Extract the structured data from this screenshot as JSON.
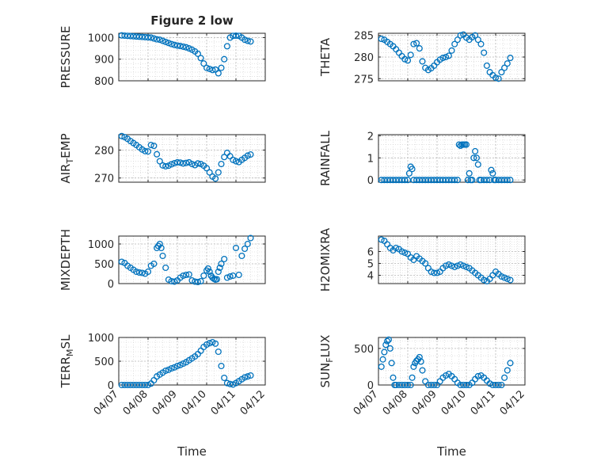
{
  "figure": {
    "title": "Figure 2 low",
    "marker_color": "#0072BD",
    "grid": "on (major and minor, dotted)"
  },
  "chart_data": [
    {
      "id": "pressure",
      "type": "scatter",
      "title": "Figure 2 low",
      "ylabel": "PRESSURE",
      "ylabel_parts": {
        "main": "PRESSURE"
      },
      "xlim": [
        "04/07",
        "04/12"
      ],
      "ylim": [
        800,
        1020
      ],
      "yticks": [
        800,
        900,
        1000
      ],
      "ytick_labels": [
        "800",
        "900",
        "1000"
      ],
      "xtick_labels_shown": false,
      "x_days": [
        0.1,
        0.2,
        0.3,
        0.4,
        0.5,
        0.6,
        0.7,
        0.8,
        0.9,
        1.0,
        1.1,
        1.2,
        1.3,
        1.4,
        1.5,
        1.6,
        1.7,
        1.8,
        1.9,
        2.0,
        2.1,
        2.2,
        2.3,
        2.4,
        2.5,
        2.6,
        2.7,
        2.8,
        2.9,
        3.0,
        3.1,
        3.2,
        3.3,
        3.4,
        3.5,
        3.6,
        3.7,
        3.8,
        3.9,
        4.0,
        4.1,
        4.2,
        4.3,
        4.4,
        4.5
      ],
      "values": [
        1010,
        1009,
        1008,
        1007,
        1006,
        1005,
        1004,
        1003,
        1002,
        1001,
        1000,
        996,
        992,
        990,
        985,
        980,
        975,
        970,
        966,
        963,
        961,
        958,
        955,
        950,
        944,
        936,
        925,
        905,
        880,
        860,
        855,
        850,
        852,
        835,
        860,
        900,
        960,
        1000,
        1008,
        1009,
        1008,
        1000,
        990,
        985,
        982
      ]
    },
    {
      "id": "theta",
      "type": "scatter",
      "ylabel": "THETA",
      "ylabel_parts": {
        "main": "THETA"
      },
      "xlim": [
        "04/07",
        "04/12"
      ],
      "ylim": [
        274.5,
        285.5
      ],
      "yticks": [
        275,
        280,
        285
      ],
      "ytick_labels": [
        "275",
        "280",
        "285"
      ],
      "xtick_labels_shown": false,
      "x_days": [
        0.1,
        0.2,
        0.3,
        0.4,
        0.5,
        0.6,
        0.7,
        0.8,
        0.9,
        1.0,
        1.1,
        1.2,
        1.3,
        1.4,
        1.5,
        1.6,
        1.7,
        1.8,
        1.9,
        2.0,
        2.1,
        2.2,
        2.3,
        2.4,
        2.5,
        2.6,
        2.7,
        2.8,
        2.9,
        3.0,
        3.1,
        3.2,
        3.3,
        3.4,
        3.5,
        3.6,
        3.7,
        3.8,
        3.9,
        4.0,
        4.1,
        4.2,
        4.3,
        4.4,
        4.5
      ],
      "values": [
        284.2,
        284,
        283.5,
        283,
        282.5,
        281.8,
        281,
        280.2,
        279.5,
        279.2,
        280.5,
        283,
        283.2,
        282,
        279,
        277.5,
        277,
        277.4,
        278,
        278.8,
        279.4,
        279.8,
        280,
        280.3,
        281.5,
        283,
        284,
        285,
        285.2,
        284.5,
        284,
        284.6,
        285,
        284,
        283,
        281,
        278,
        276.5,
        275.8,
        275.2,
        275,
        276.5,
        277.5,
        278.5,
        279.8
      ]
    },
    {
      "id": "air_temp",
      "type": "scatter",
      "ylabel": "AIR_TEMP",
      "ylabel_parts": {
        "main": "AIR",
        "sub": "T",
        "tail": "EMP"
      },
      "xlim": [
        "04/07",
        "04/12"
      ],
      "ylim": [
        268.5,
        285.5
      ],
      "yticks": [
        270,
        280
      ],
      "ytick_labels": [
        "270",
        "280"
      ],
      "xtick_labels_shown": false,
      "x_days": [
        0.1,
        0.2,
        0.3,
        0.4,
        0.5,
        0.6,
        0.7,
        0.8,
        0.9,
        1.0,
        1.1,
        1.2,
        1.3,
        1.4,
        1.5,
        1.6,
        1.7,
        1.8,
        1.9,
        2.0,
        2.1,
        2.2,
        2.3,
        2.4,
        2.5,
        2.6,
        2.7,
        2.8,
        2.9,
        3.0,
        3.1,
        3.2,
        3.3,
        3.4,
        3.5,
        3.6,
        3.7,
        3.8,
        3.9,
        4.0,
        4.1,
        4.2,
        4.3,
        4.4,
        4.5
      ],
      "values": [
        285,
        284.6,
        284,
        283.2,
        282.5,
        281.8,
        281,
        280.2,
        279.6,
        279.5,
        281.8,
        281.5,
        278.5,
        276,
        274.5,
        274.2,
        274.4,
        274.9,
        275.3,
        275.6,
        275.5,
        275.2,
        275.4,
        275.6,
        275,
        274.6,
        275.2,
        275,
        274.4,
        273.5,
        272,
        270.5,
        269.8,
        272,
        275,
        277.5,
        279,
        277.8,
        276.5,
        276,
        275.7,
        276.5,
        277.2,
        278,
        278.4
      ]
    },
    {
      "id": "rainfall",
      "type": "scatter",
      "ylabel": "RAINFALL",
      "ylabel_parts": {
        "main": "RAINFALL"
      },
      "xlim": [
        "04/07",
        "04/12"
      ],
      "ylim": [
        -0.1,
        2.05
      ],
      "yticks": [
        0,
        1,
        2
      ],
      "ytick_labels": [
        "0",
        "1",
        "2"
      ],
      "xtick_labels_shown": false,
      "x_days": [
        0.1,
        0.2,
        0.3,
        0.4,
        0.5,
        0.6,
        0.7,
        0.8,
        0.9,
        1.0,
        1.05,
        1.1,
        1.15,
        1.2,
        1.3,
        1.4,
        1.5,
        1.6,
        1.7,
        1.8,
        1.9,
        2.0,
        2.1,
        2.2,
        2.3,
        2.4,
        2.5,
        2.6,
        2.7,
        2.75,
        2.8,
        2.85,
        2.9,
        2.95,
        3.0,
        3.05,
        3.1,
        3.15,
        3.2,
        3.25,
        3.3,
        3.35,
        3.4,
        3.45,
        3.5,
        3.6,
        3.7,
        3.8,
        3.85,
        3.9,
        3.95,
        4.0,
        4.1,
        4.2,
        4.3,
        4.4,
        4.5
      ],
      "values": [
        0,
        0,
        0,
        0,
        0,
        0,
        0,
        0,
        0,
        0,
        0.3,
        0.6,
        0.5,
        0,
        0,
        0,
        0,
        0,
        0,
        0,
        0,
        0,
        0,
        0,
        0,
        0,
        0,
        0,
        0,
        1.6,
        1.55,
        1.6,
        1.6,
        1.6,
        1.6,
        0,
        0.3,
        0,
        0,
        1.0,
        1.3,
        1.0,
        0.7,
        0,
        0,
        0,
        0,
        0,
        0.45,
        0.3,
        0,
        0,
        0,
        0,
        0,
        0,
        0
      ]
    },
    {
      "id": "mixdepth",
      "type": "scatter",
      "ylabel": "MIXDEPTH",
      "ylabel_parts": {
        "main": "MIXDEPTH"
      },
      "xlim": [
        "04/07",
        "04/12"
      ],
      "ylim": [
        0,
        1200
      ],
      "yticks": [
        0,
        500,
        1000
      ],
      "ytick_labels": [
        "0",
        "500",
        "1000"
      ],
      "xtick_labels_shown": false,
      "x_days": [
        0.1,
        0.2,
        0.3,
        0.4,
        0.5,
        0.6,
        0.7,
        0.8,
        0.9,
        1.0,
        1.1,
        1.2,
        1.3,
        1.35,
        1.4,
        1.45,
        1.5,
        1.6,
        1.7,
        1.8,
        1.9,
        2.0,
        2.1,
        2.2,
        2.3,
        2.4,
        2.5,
        2.6,
        2.7,
        2.8,
        2.9,
        3.0,
        3.05,
        3.1,
        3.15,
        3.2,
        3.25,
        3.3,
        3.35,
        3.4,
        3.45,
        3.5,
        3.6,
        3.7,
        3.8,
        3.9,
        4.0,
        4.1,
        4.2,
        4.3,
        4.4,
        4.5
      ],
      "values": [
        550,
        520,
        450,
        400,
        350,
        300,
        280,
        270,
        250,
        300,
        450,
        500,
        900,
        950,
        1000,
        900,
        700,
        400,
        100,
        60,
        50,
        80,
        150,
        200,
        220,
        230,
        80,
        50,
        40,
        60,
        200,
        330,
        380,
        300,
        200,
        150,
        120,
        100,
        110,
        300,
        400,
        500,
        620,
        150,
        180,
        200,
        900,
        220,
        700,
        880,
        1000,
        1150
      ]
    },
    {
      "id": "h2omixra",
      "type": "scatter",
      "ylabel": "H2OMIXRA",
      "ylabel_parts": {
        "main": "H2OMIXRA"
      },
      "xlim": [
        "04/07",
        "04/12"
      ],
      "ylim": [
        3.3,
        7.3
      ],
      "yticks": [
        4,
        5,
        6
      ],
      "ytick_labels": [
        "4",
        "5",
        "6"
      ],
      "xtick_labels_shown": false,
      "x_days": [
        0.1,
        0.2,
        0.3,
        0.4,
        0.5,
        0.6,
        0.7,
        0.8,
        0.9,
        1.0,
        1.1,
        1.2,
        1.3,
        1.4,
        1.5,
        1.6,
        1.7,
        1.8,
        1.9,
        2.0,
        2.1,
        2.2,
        2.3,
        2.4,
        2.5,
        2.6,
        2.7,
        2.8,
        2.9,
        3.0,
        3.1,
        3.2,
        3.3,
        3.4,
        3.5,
        3.6,
        3.7,
        3.8,
        3.9,
        4.0,
        4.1,
        4.2,
        4.3,
        4.4,
        4.5
      ],
      "values": [
        7,
        6.9,
        6.6,
        6.3,
        6.1,
        6.3,
        6.2,
        6.0,
        5.9,
        5.8,
        5.5,
        5.3,
        5.6,
        5.4,
        5.2,
        5.0,
        4.6,
        4.3,
        4.2,
        4.2,
        4.3,
        4.6,
        4.8,
        4.9,
        4.8,
        4.7,
        4.8,
        4.9,
        4.8,
        4.7,
        4.6,
        4.4,
        4.2,
        4.0,
        3.8,
        3.6,
        3.5,
        3.7,
        4.0,
        4.3,
        4.1,
        3.9,
        3.8,
        3.7,
        3.6
      ]
    },
    {
      "id": "terr_msl",
      "type": "scatter",
      "ylabel": "TERR_MSL",
      "ylabel_parts": {
        "main": "TERR",
        "sub": "M",
        "tail": "SL"
      },
      "xlabel": "Time",
      "xlim": [
        "04/07",
        "04/12"
      ],
      "xtick_labels": [
        "04/07",
        "04/08",
        "04/09",
        "04/10",
        "04/11",
        "04/12"
      ],
      "ylim": [
        0,
        1000
      ],
      "yticks": [
        0,
        500,
        1000
      ],
      "ytick_labels": [
        "0",
        "500",
        "1000"
      ],
      "x_days": [
        0.1,
        0.2,
        0.3,
        0.4,
        0.5,
        0.6,
        0.7,
        0.8,
        0.9,
        1.0,
        1.1,
        1.2,
        1.3,
        1.4,
        1.5,
        1.6,
        1.7,
        1.8,
        1.9,
        2.0,
        2.1,
        2.2,
        2.3,
        2.4,
        2.5,
        2.6,
        2.7,
        2.8,
        2.9,
        3.0,
        3.1,
        3.2,
        3.3,
        3.4,
        3.5,
        3.6,
        3.7,
        3.8,
        3.9,
        4.0,
        4.1,
        4.2,
        4.3,
        4.4,
        4.5
      ],
      "values": [
        0,
        0,
        0,
        0,
        0,
        0,
        0,
        0,
        0,
        0,
        30,
        100,
        180,
        220,
        260,
        300,
        320,
        350,
        370,
        400,
        420,
        450,
        480,
        520,
        560,
        600,
        650,
        720,
        800,
        850,
        880,
        900,
        870,
        700,
        400,
        150,
        40,
        20,
        10,
        40,
        80,
        120,
        160,
        180,
        200
      ]
    },
    {
      "id": "sun_flux",
      "type": "scatter",
      "ylabel": "SUN_FLUX",
      "ylabel_parts": {
        "main": "SUN",
        "sub": "F",
        "tail": "LUX"
      },
      "xlabel": "Time",
      "xlim": [
        "04/07",
        "04/12"
      ],
      "xtick_labels": [
        "04/07",
        "04/08",
        "04/09",
        "04/10",
        "04/11",
        "04/12"
      ],
      "ylim": [
        0,
        650
      ],
      "yticks": [
        0,
        500
      ],
      "ytick_labels": [
        "0",
        "500"
      ],
      "x_days": [
        0.1,
        0.15,
        0.2,
        0.25,
        0.3,
        0.35,
        0.4,
        0.45,
        0.5,
        0.55,
        0.6,
        0.7,
        0.8,
        0.9,
        1.0,
        1.1,
        1.15,
        1.2,
        1.25,
        1.3,
        1.35,
        1.4,
        1.45,
        1.5,
        1.6,
        1.7,
        1.8,
        1.9,
        2.0,
        2.1,
        2.2,
        2.3,
        2.4,
        2.5,
        2.6,
        2.7,
        2.8,
        2.9,
        3.0,
        3.1,
        3.2,
        3.3,
        3.4,
        3.5,
        3.6,
        3.7,
        3.8,
        3.9,
        4.0,
        4.1,
        4.2,
        4.3,
        4.4,
        4.5
      ],
      "values": [
        250,
        350,
        450,
        550,
        600,
        620,
        500,
        300,
        100,
        0,
        0,
        0,
        0,
        0,
        0,
        0,
        100,
        250,
        300,
        330,
        350,
        380,
        320,
        200,
        50,
        0,
        0,
        0,
        0,
        50,
        100,
        130,
        150,
        120,
        80,
        30,
        0,
        0,
        0,
        0,
        30,
        80,
        120,
        130,
        100,
        60,
        20,
        0,
        0,
        0,
        0,
        100,
        200,
        300
      ]
    }
  ]
}
